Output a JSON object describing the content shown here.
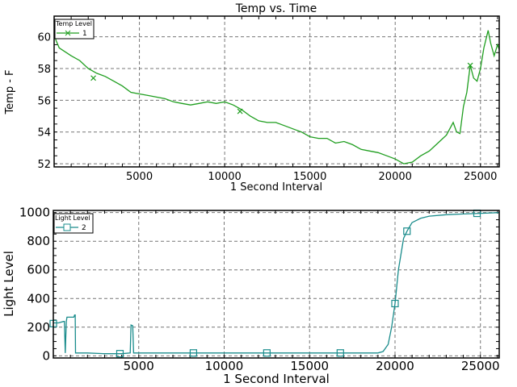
{
  "chart_data": [
    {
      "type": "line",
      "title": "Temp vs. Time",
      "xlabel": "1 Second Interval",
      "ylabel": "Temp - F",
      "xlim": [
        0,
        26100
      ],
      "ylim": [
        51.8,
        61.3
      ],
      "xticks": [
        5000,
        10000,
        15000,
        20000,
        25000
      ],
      "yticks": [
        52,
        54,
        56,
        58,
        60
      ],
      "grid": true,
      "legend": {
        "title": "Temp Level",
        "position": "top-left",
        "entries": [
          "1"
        ]
      },
      "series": [
        {
          "name": "1",
          "color": "#1f9e1f",
          "marker": "x",
          "x": [
            0,
            100,
            300,
            1000,
            1500,
            2000,
            2500,
            3000,
            3500,
            4000,
            4500,
            5000,
            5500,
            6000,
            6500,
            7000,
            7500,
            8000,
            8500,
            9000,
            9500,
            10000,
            10500,
            11000,
            11500,
            12000,
            12500,
            13000,
            13500,
            14000,
            14500,
            15000,
            15500,
            16000,
            16500,
            17000,
            17500,
            18000,
            18500,
            19000,
            19500,
            20000,
            20500,
            21000,
            21500,
            22000,
            22500,
            23000,
            23400,
            23600,
            23800,
            24000,
            24200,
            24400,
            24600,
            24800,
            25000,
            25200,
            25450,
            25600,
            25800,
            26000,
            26100
          ],
          "y": [
            61.0,
            59.8,
            59.3,
            58.8,
            58.5,
            58.0,
            57.7,
            57.5,
            57.2,
            56.9,
            56.5,
            56.4,
            56.3,
            56.2,
            56.1,
            55.9,
            55.8,
            55.7,
            55.8,
            55.9,
            55.8,
            55.9,
            55.7,
            55.4,
            55.0,
            54.7,
            54.6,
            54.6,
            54.4,
            54.2,
            54.0,
            53.7,
            53.6,
            53.6,
            53.3,
            53.4,
            53.2,
            52.9,
            52.8,
            52.7,
            52.5,
            52.3,
            52.0,
            52.1,
            52.5,
            52.8,
            53.3,
            53.8,
            54.6,
            54.0,
            53.9,
            55.6,
            56.5,
            58.2,
            57.4,
            57.2,
            58.0,
            59.3,
            60.4,
            59.6,
            58.8,
            59.5,
            59.2
          ],
          "markers_x": [
            2300,
            10900,
            24400
          ],
          "markers_y": [
            57.4,
            55.3,
            58.2
          ]
        }
      ]
    },
    {
      "type": "line",
      "title": "",
      "xlabel": "1 Second Interval",
      "ylabel": "Light Level",
      "xlim": [
        0,
        26100
      ],
      "ylim": [
        -15,
        1015
      ],
      "xticks": [
        5000,
        10000,
        15000,
        20000,
        25000
      ],
      "yticks": [
        0,
        200,
        400,
        600,
        800,
        1000
      ],
      "grid": true,
      "legend": {
        "title": "Light Level",
        "position": "top-left",
        "entries": [
          "2"
        ]
      },
      "series": [
        {
          "name": "2",
          "color": "#1a8c8c",
          "marker": "square",
          "x": [
            0,
            300,
            600,
            650,
            700,
            760,
            800,
            1200,
            1250,
            1280,
            1300,
            2000,
            3000,
            4000,
            4500,
            4550,
            4650,
            4700,
            6000,
            19000,
            19300,
            19600,
            19800,
            20000,
            20200,
            20500,
            20700,
            21000,
            21500,
            22000,
            23000,
            24000,
            25000,
            26100
          ],
          "y": [
            230,
            230,
            240,
            240,
            20,
            240,
            270,
            270,
            285,
            285,
            20,
            20,
            15,
            15,
            20,
            215,
            210,
            20,
            20,
            20,
            30,
            80,
            200,
            365,
            600,
            820,
            870,
            930,
            960,
            975,
            985,
            990,
            995,
            1000
          ],
          "markers_x": [
            0,
            3900,
            8200,
            12500,
            16800,
            20000,
            20700,
            24800
          ],
          "markers_y": [
            225,
            15,
            20,
            20,
            20,
            365,
            870,
            995
          ]
        }
      ]
    }
  ]
}
